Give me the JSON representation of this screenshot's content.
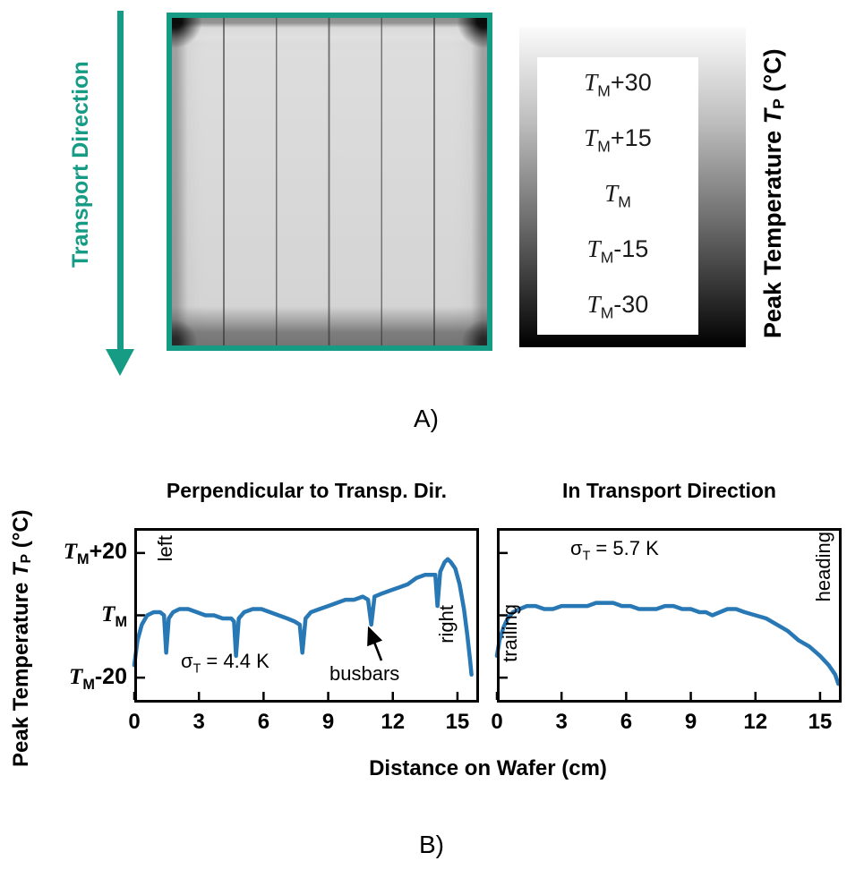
{
  "colors": {
    "accent_teal": "#169b84",
    "line_blue": "#2878b5"
  },
  "labels": {
    "peak_temperature": {
      "prefix": "Peak Temperature ",
      "symbol": "T",
      "sub": "P",
      "suffix": " (°C)"
    }
  },
  "panel_a": {
    "label": "A)",
    "transport_direction_label": "Transport Direction",
    "wafer_image": {
      "description": "infrared thermal image of a square solar wafer with five vertical busbar lines"
    },
    "colorbar": {
      "labels": [
        {
          "symbol": "T",
          "sub": "M",
          "suffix": "+30"
        },
        {
          "symbol": "T",
          "sub": "M",
          "suffix": "+15"
        },
        {
          "symbol": "T",
          "sub": "M",
          "suffix": ""
        },
        {
          "symbol": "T",
          "sub": "M",
          "suffix": "-15"
        },
        {
          "symbol": "T",
          "sub": "M",
          "suffix": "-30"
        }
      ]
    }
  },
  "panel_b": {
    "label": "B)",
    "x_axis_label": "Distance on Wafer (cm)",
    "y_tick_labels": [
      {
        "symbol": "T",
        "sub": "M",
        "suffix": "+20"
      },
      {
        "symbol": "T",
        "sub": "M",
        "suffix": ""
      },
      {
        "symbol": "T",
        "sub": "M",
        "suffix": "-20"
      }
    ],
    "left_chart": {
      "title": "Perpendicular to Transp. Dir.",
      "sigma": {
        "symbol": "σ",
        "sub": "T",
        "rest": " = 4.4 K"
      },
      "annotations": {
        "left": "left",
        "right": "right",
        "busbars": "busbars"
      }
    },
    "right_chart": {
      "title": "In Transport Direction",
      "sigma": {
        "symbol": "σ",
        "sub": "T",
        "rest": " = 5.7 K"
      },
      "annotations": {
        "trailing": "trailing",
        "heading": "heading"
      }
    }
  },
  "chart_data": [
    {
      "type": "line",
      "title": "Perpendicular to Transp. Dir.",
      "xlabel": "Distance on Wafer (cm)",
      "ylabel": "Peak Temperature T_P (°C)",
      "y_unit": "K relative to T_M",
      "xlim": [
        0,
        16
      ],
      "ylim": [
        -28,
        28
      ],
      "xticks": [
        0,
        3,
        6,
        9,
        12,
        15
      ],
      "yticks": [
        20,
        0,
        -20
      ],
      "ytick_labels": [
        "T_M+20",
        "T_M",
        "T_M-20"
      ],
      "sigma_T": "4.4 K",
      "annotations": [
        "left",
        "right",
        "busbars"
      ],
      "series": [
        {
          "name": "peak temperature profile",
          "color": "#2878b5",
          "x": [
            0,
            0.15,
            0.35,
            0.6,
            0.9,
            1.2,
            1.38,
            1.48,
            1.6,
            1.8,
            2.1,
            2.5,
            2.9,
            3.3,
            3.7,
            4.1,
            4.5,
            4.63,
            4.72,
            4.85,
            5.1,
            5.5,
            5.9,
            6.3,
            6.7,
            7.1,
            7.45,
            7.68,
            7.8,
            7.95,
            8.2,
            8.6,
            9.0,
            9.4,
            9.8,
            10.2,
            10.6,
            10.85,
            11.0,
            11.15,
            11.5,
            11.9,
            12.3,
            12.7,
            13.1,
            13.5,
            13.8,
            13.97,
            14.07,
            14.2,
            14.4,
            14.55,
            14.7,
            14.9,
            15.1,
            15.3,
            15.45,
            15.58,
            15.65
          ],
          "y": [
            -16,
            -8,
            -3,
            0,
            1,
            1,
            0,
            -12,
            -1,
            1,
            2,
            2,
            1,
            0,
            0,
            -1,
            -1,
            -2,
            -13,
            -1,
            1,
            2,
            2,
            1,
            0,
            -1,
            -2,
            -3,
            -12,
            -1,
            1,
            2,
            3,
            4,
            5,
            5,
            6,
            5,
            -3,
            6,
            7,
            8,
            9,
            10,
            12,
            13,
            13,
            13,
            3,
            14,
            17,
            18,
            17,
            15,
            10,
            2,
            -6,
            -14,
            -19
          ]
        }
      ]
    },
    {
      "type": "line",
      "title": "In Transport Direction",
      "xlabel": "Distance on Wafer (cm)",
      "ylabel": "Peak Temperature T_P (°C)",
      "y_unit": "K relative to T_M",
      "xlim": [
        0,
        16
      ],
      "ylim": [
        -28,
        28
      ],
      "xticks": [
        0,
        3,
        6,
        9,
        12,
        15
      ],
      "yticks": [
        20,
        0,
        -20
      ],
      "ytick_labels": [],
      "sigma_T": "5.7 K",
      "annotations": [
        "trailing",
        "heading"
      ],
      "series": [
        {
          "name": "peak temperature profile",
          "color": "#2878b5",
          "x": [
            0,
            0.12,
            0.3,
            0.5,
            0.75,
            1.05,
            1.4,
            1.8,
            2.2,
            2.6,
            3.0,
            3.4,
            3.8,
            4.2,
            4.6,
            5.0,
            5.4,
            5.8,
            6.2,
            6.6,
            7.0,
            7.4,
            7.8,
            8.2,
            8.6,
            9.0,
            9.4,
            9.7,
            10.0,
            10.35,
            10.7,
            11.1,
            11.5,
            12.0,
            12.5,
            13.0,
            13.5,
            14.0,
            14.5,
            15.0,
            15.4,
            15.7,
            15.85
          ],
          "y": [
            -13,
            -8,
            -4,
            -1,
            1,
            2,
            3,
            3,
            2,
            2,
            3,
            3,
            3,
            3,
            4,
            4,
            4,
            3,
            3,
            2,
            2,
            2,
            3,
            3,
            2,
            2,
            1,
            1,
            0,
            1,
            2,
            2,
            1,
            0,
            -1,
            -3,
            -5,
            -8,
            -10,
            -13,
            -16,
            -19,
            -22
          ]
        }
      ]
    }
  ]
}
